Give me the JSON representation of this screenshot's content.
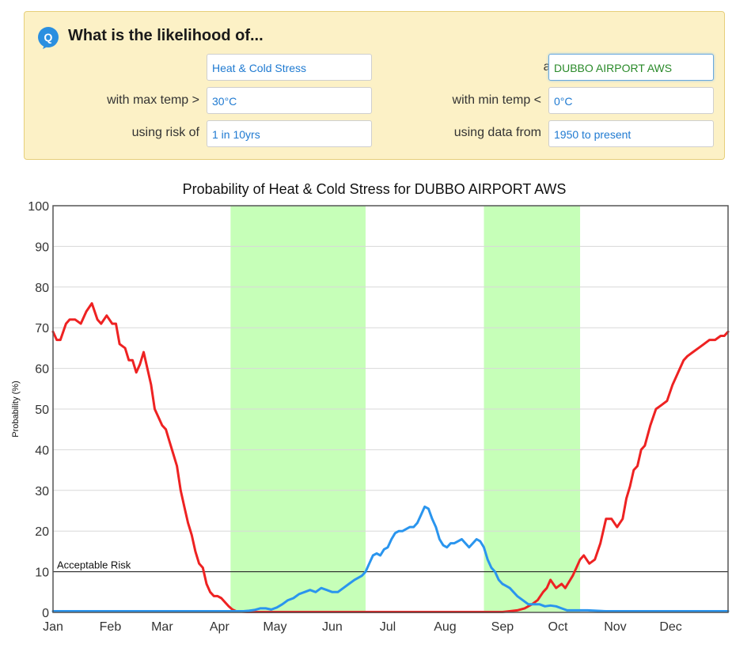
{
  "query": {
    "title": "What is the likelihood of...",
    "icon": "question-icon",
    "accent_color": "#2a8fe0",
    "stress_type": "Heat & Cold Stress",
    "at_label": "at",
    "station": "DUBBO AIRPORT AWS",
    "max_temp_label": "with max temp >",
    "max_temp": "30°C",
    "min_temp_label": "with min temp <",
    "min_temp": "0°C",
    "risk_label": "using risk of",
    "risk": "1 in 10yrs",
    "data_label": "using data from",
    "data_range": "1950 to present"
  },
  "chart_data": {
    "type": "line",
    "title": "Probability of Heat & Cold Stress for DUBBO AIRPORT AWS",
    "ylabel": "Probability (%)",
    "xlabel": "",
    "ylim": [
      0,
      100
    ],
    "yticks": [
      0,
      10,
      20,
      30,
      40,
      50,
      60,
      70,
      80,
      90,
      100
    ],
    "xlim_days": [
      1,
      366
    ],
    "month_labels": [
      "Jan",
      "Feb",
      "Mar",
      "Apr",
      "May",
      "Jun",
      "Jul",
      "Aug",
      "Sep",
      "Oct",
      "Nov",
      "Dec"
    ],
    "month_start_days": [
      1,
      32,
      60,
      91,
      121,
      152,
      182,
      213,
      244,
      274,
      305,
      335
    ],
    "grid": true,
    "threshold": {
      "value": 10,
      "label": "Acceptable Risk"
    },
    "acceptable_windows": [
      {
        "start_day": 97,
        "end_day": 170,
        "color": "#c6ffb8"
      },
      {
        "start_day": 234,
        "end_day": 286,
        "color": "#c6ffb8"
      }
    ],
    "series": [
      {
        "color": "#ee2222",
        "x": [
          1,
          3,
          5,
          8,
          10,
          13,
          16,
          19,
          22,
          25,
          27,
          30,
          33,
          35,
          37,
          40,
          42,
          44,
          46,
          48,
          50,
          52,
          54,
          56,
          58,
          60,
          62,
          64,
          66,
          68,
          70,
          72,
          74,
          76,
          78,
          80,
          82,
          84,
          86,
          88,
          90,
          92,
          94,
          96,
          98,
          100,
          103,
          106,
          110,
          114,
          117,
          120,
          125,
          130,
          140,
          150,
          160,
          170,
          180,
          190,
          200,
          210,
          220,
          230,
          240,
          244,
          248,
          252,
          256,
          260,
          263,
          266,
          268,
          270,
          273,
          276,
          278,
          280,
          282,
          284,
          286,
          288,
          291,
          294,
          297,
          300,
          303,
          306,
          309,
          311,
          313,
          315,
          317,
          319,
          321,
          324,
          327,
          330,
          333,
          336,
          338,
          340,
          342,
          344,
          347,
          350,
          353,
          356,
          359,
          362,
          364,
          366
        ],
        "y": [
          69,
          67,
          67,
          71,
          72,
          72,
          71,
          74,
          76,
          72,
          71,
          73,
          71,
          71,
          66,
          65,
          62,
          62,
          59,
          61,
          64,
          60,
          56,
          50,
          48,
          46,
          45,
          42,
          39,
          36,
          30,
          26,
          22,
          19,
          15,
          12,
          11,
          7,
          5,
          4,
          4,
          3.5,
          2.5,
          1.5,
          0.7,
          0.3,
          0.2,
          0.1,
          0.1,
          0.1,
          0.1,
          0.1,
          0.1,
          0.1,
          0.1,
          0.1,
          0.1,
          0.1,
          0.1,
          0.1,
          0.1,
          0.1,
          0.1,
          0.1,
          0.1,
          0.1,
          0.3,
          0.5,
          1,
          2,
          3,
          5,
          6,
          8,
          6,
          7,
          6,
          7.5,
          9,
          11,
          13,
          14,
          12,
          13,
          17,
          23,
          23,
          21,
          23,
          28,
          31,
          35,
          36,
          40,
          41,
          46,
          50,
          51,
          52,
          56,
          58,
          60,
          62,
          63,
          64,
          65,
          66,
          67,
          67,
          68,
          68,
          69
        ]
      },
      {
        "color": "#2a95ee",
        "x": [
          1,
          30,
          60,
          90,
          100,
          104,
          107,
          110,
          113,
          116,
          119,
          122,
          125,
          128,
          131,
          134,
          137,
          140,
          143,
          146,
          149,
          152,
          155,
          158,
          161,
          164,
          166,
          168,
          170,
          172,
          174,
          176,
          178,
          180,
          182,
          184,
          186,
          188,
          190,
          192,
          194,
          196,
          198,
          200,
          202,
          204,
          206,
          208,
          210,
          212,
          214,
          216,
          218,
          220,
          222,
          224,
          226,
          228,
          230,
          232,
          234,
          236,
          238,
          240,
          242,
          244,
          246,
          248,
          250,
          252,
          255,
          258,
          261,
          264,
          267,
          270,
          273,
          276,
          279,
          282,
          285,
          290,
          300,
          330,
          366
        ],
        "y": [
          0.3,
          0.3,
          0.3,
          0.3,
          0.3,
          0.3,
          0.4,
          0.6,
          1,
          1,
          0.7,
          1.2,
          2,
          3,
          3.5,
          4.5,
          5,
          5.5,
          5,
          6,
          5.5,
          5,
          5,
          6,
          7,
          8,
          8.5,
          9,
          10,
          12,
          14,
          14.5,
          14,
          15.5,
          16,
          18,
          19.5,
          20,
          20,
          20.5,
          21,
          21,
          22,
          24,
          26,
          25.5,
          23,
          21,
          18,
          16.5,
          16,
          17,
          17,
          17.5,
          18,
          17,
          16,
          17,
          18,
          17.5,
          16,
          13,
          11,
          10,
          8,
          7,
          6.5,
          6,
          5,
          4,
          3,
          2,
          2,
          2,
          1.5,
          1.7,
          1.5,
          1,
          0.5,
          0.5,
          0.5,
          0.5,
          0.3,
          0.3,
          0.3
        ]
      }
    ]
  }
}
